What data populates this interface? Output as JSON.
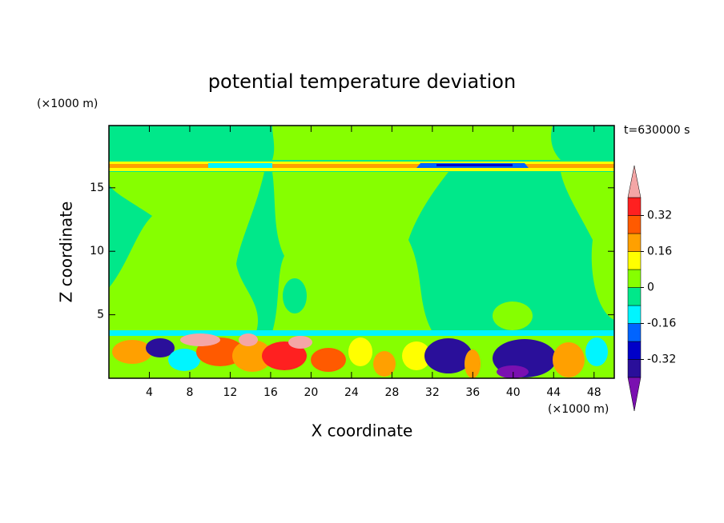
{
  "chart_data": {
    "type": "contour",
    "title": "potential temperature deviation",
    "x_label": "X coordinate",
    "y_label": "Z coordinate",
    "x_unit": "(×1000 m)",
    "y_unit": "(×1000 m)",
    "annotation": "t=630000 s",
    "xlim": [
      0,
      50
    ],
    "xticks": [
      4,
      8,
      12,
      16,
      20,
      24,
      28,
      32,
      36,
      40,
      44,
      48
    ],
    "ylim": [
      0,
      19.9
    ],
    "yticks": [
      5,
      10,
      15
    ],
    "colorbar": {
      "levels": [
        -0.4,
        -0.32,
        -0.24,
        -0.16,
        -0.08,
        0,
        0.08,
        0.16,
        0.24,
        0.32,
        0.4
      ],
      "ticks": [
        -0.32,
        -0.16,
        0,
        0.16,
        0.32
      ],
      "colors": [
        "#7a10b0",
        "#2a0f9a",
        "#0000c8",
        "#0064ff",
        "#00f5ff",
        "#00e88a",
        "#86ff00",
        "#ffff00",
        "#ffa000",
        "#ff5a00",
        "#ff2020",
        "#f4a6a6"
      ]
    }
  }
}
